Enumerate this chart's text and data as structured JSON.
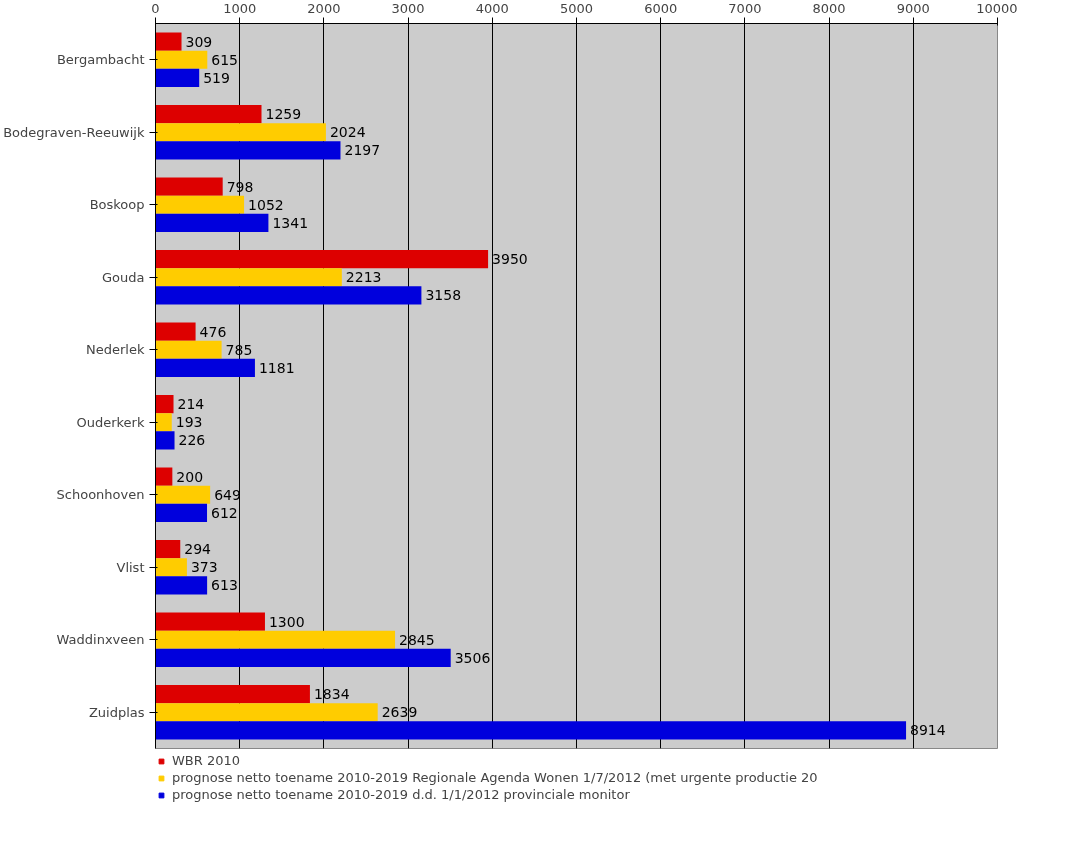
{
  "chart_data": {
    "type": "bar",
    "orientation": "horizontal",
    "categories": [
      "Bergambacht",
      "Bodegraven-Reeuwijk",
      "Boskoop",
      "Gouda",
      "Nederlek",
      "Ouderkerk",
      "Schoonhoven",
      "Vlist",
      "Waddinxveen",
      "Zuidplas"
    ],
    "series": [
      {
        "name": "WBR 2010",
        "color": "#dd0000",
        "values": [
          309,
          1259,
          798,
          3950,
          476,
          214,
          200,
          294,
          1300,
          1834
        ]
      },
      {
        "name": "prognose netto toename 2010-2019 Regionale Agenda Wonen 1/7/2012 (met urgente productie 20",
        "color": "#ffcc00",
        "values": [
          615,
          2024,
          1052,
          2213,
          785,
          193,
          649,
          373,
          2845,
          2639
        ]
      },
      {
        "name": "prognose netto toename 2010-2019 d.d. 1/1/2012 provinciale monitor",
        "color": "#0000dd",
        "values": [
          519,
          2197,
          1341,
          3158,
          1181,
          226,
          612,
          613,
          3506,
          8914
        ]
      }
    ],
    "xlim": [
      0,
      10000
    ],
    "xticks": [
      0,
      1000,
      2000,
      3000,
      4000,
      5000,
      6000,
      7000,
      8000,
      9000,
      10000
    ],
    "grid": "x",
    "legend": "bottom",
    "data_labels": true
  }
}
